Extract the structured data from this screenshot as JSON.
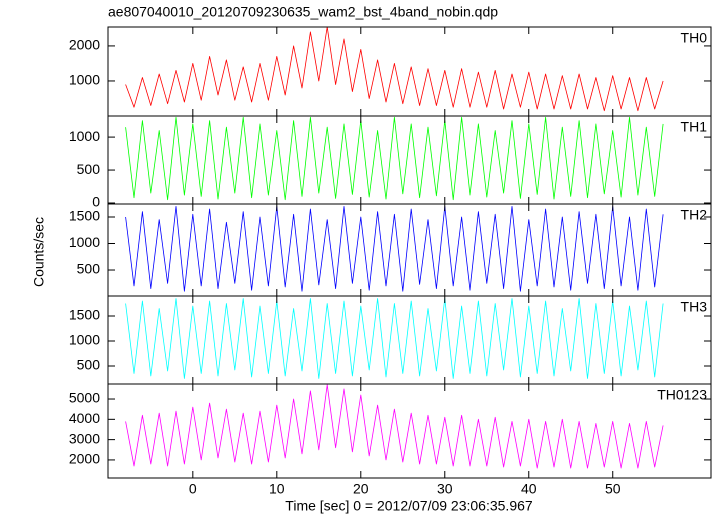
{
  "title": "ae807040010_20120709230635_wam2_bst_4band_nobin.qdp",
  "xlabel": "Time [sec] 0 = 2012/07/09 23:06:35.967",
  "ylabel": "Counts/sec",
  "chart_data": [
    {
      "type": "line",
      "label": "TH0",
      "color": "#ff0000",
      "x": [
        -8,
        -7,
        -6,
        -5,
        -4,
        -3,
        -2,
        -1,
        0,
        1,
        2,
        3,
        4,
        5,
        6,
        7,
        8,
        9,
        10,
        11,
        12,
        13,
        14,
        15,
        16,
        17,
        18,
        19,
        20,
        21,
        22,
        23,
        24,
        25,
        26,
        27,
        28,
        29,
        30,
        31,
        32,
        33,
        34,
        35,
        36,
        37,
        38,
        39,
        40,
        41,
        42,
        43,
        44,
        45,
        46,
        47,
        48,
        49,
        50,
        51,
        52,
        53,
        54,
        55,
        56
      ],
      "values": [
        900,
        250,
        1100,
        300,
        1200,
        350,
        1300,
        400,
        1500,
        450,
        1700,
        600,
        1600,
        450,
        1400,
        400,
        1500,
        450,
        1700,
        600,
        2000,
        800,
        2400,
        1000,
        2540,
        900,
        2200,
        700,
        1900,
        500,
        1600,
        400,
        1500,
        350,
        1400,
        300,
        1350,
        300,
        1300,
        250,
        1350,
        250,
        1250,
        250,
        1300,
        200,
        1200,
        250,
        1250,
        200,
        1200,
        200,
        1150,
        200,
        1200,
        200,
        1100,
        150,
        1150,
        200,
        1100,
        150,
        1100,
        200,
        1000
      ],
      "xlim": [
        -10.1,
        61.7
      ],
      "xticks": [
        0,
        10,
        20,
        30,
        40,
        50
      ],
      "ylim": [
        0,
        2540
      ],
      "yticks": [
        1000,
        2000
      ]
    },
    {
      "type": "line",
      "label": "TH1",
      "color": "#00ff00",
      "x": [
        -8,
        -7,
        -6,
        -5,
        -4,
        -3,
        -2,
        -1,
        0,
        1,
        2,
        3,
        4,
        5,
        6,
        7,
        8,
        9,
        10,
        11,
        12,
        13,
        14,
        15,
        16,
        17,
        18,
        19,
        20,
        21,
        22,
        23,
        24,
        25,
        26,
        27,
        28,
        29,
        30,
        31,
        32,
        33,
        34,
        35,
        36,
        37,
        38,
        39,
        40,
        41,
        42,
        43,
        44,
        45,
        46,
        47,
        48,
        49,
        50,
        51,
        52,
        53,
        54,
        55,
        56
      ],
      "values": [
        1150,
        80,
        1250,
        150,
        1100,
        50,
        1300,
        120,
        1200,
        100,
        1250,
        60,
        1150,
        150,
        1300,
        80,
        1200,
        120,
        1100,
        50,
        1250,
        100,
        1300,
        150,
        1150,
        70,
        1200,
        130,
        1250,
        90,
        1100,
        60,
        1300,
        140,
        1200,
        80,
        1150,
        110,
        1250,
        50,
        1300,
        120,
        1200,
        90,
        1100,
        150,
        1250,
        70,
        1200,
        130,
        1300,
        60,
        1150,
        100,
        1250,
        80,
        1200,
        140,
        1100,
        90,
        1300,
        120,
        1150,
        100,
        1200
      ],
      "xlim": [
        -10.1,
        61.7
      ],
      "xticks": [
        0,
        10,
        20,
        30,
        40,
        50
      ],
      "ylim": [
        -15,
        1320
      ],
      "yticks": [
        0,
        500,
        1000
      ]
    },
    {
      "type": "line",
      "label": "TH2",
      "color": "#0000ff",
      "x": [
        -8,
        -7,
        -6,
        -5,
        -4,
        -3,
        -2,
        -1,
        0,
        1,
        2,
        3,
        4,
        5,
        6,
        7,
        8,
        9,
        10,
        11,
        12,
        13,
        14,
        15,
        16,
        17,
        18,
        19,
        20,
        21,
        22,
        23,
        24,
        25,
        26,
        27,
        28,
        29,
        30,
        31,
        32,
        33,
        34,
        35,
        36,
        37,
        38,
        39,
        40,
        41,
        42,
        43,
        44,
        45,
        46,
        47,
        48,
        49,
        50,
        51,
        52,
        53,
        54,
        55,
        56
      ],
      "values": [
        1500,
        200,
        1600,
        150,
        1450,
        250,
        1700,
        100,
        1550,
        200,
        1650,
        150,
        1400,
        250,
        1600,
        120,
        1500,
        200,
        1700,
        180,
        1550,
        100,
        1650,
        220,
        1450,
        150,
        1700,
        250,
        1500,
        120,
        1600,
        200,
        1550,
        100,
        1650,
        230,
        1450,
        150,
        1700,
        200,
        1500,
        120,
        1600,
        250,
        1550,
        150,
        1700,
        100,
        1450,
        200,
        1650,
        180,
        1500,
        120,
        1600,
        250,
        1550,
        150,
        1700,
        200,
        1500,
        120,
        1650,
        180,
        1550
      ],
      "xlim": [
        -10.1,
        61.7
      ],
      "xticks": [
        0,
        10,
        20,
        30,
        40,
        50
      ],
      "ylim": [
        10,
        1745
      ],
      "yticks": [
        500,
        1000,
        1500
      ]
    },
    {
      "type": "line",
      "label": "TH3",
      "color": "#00ffff",
      "x": [
        -8,
        -7,
        -6,
        -5,
        -4,
        -3,
        -2,
        -1,
        0,
        1,
        2,
        3,
        4,
        5,
        6,
        7,
        8,
        9,
        10,
        11,
        12,
        13,
        14,
        15,
        16,
        17,
        18,
        19,
        20,
        21,
        22,
        23,
        24,
        25,
        26,
        27,
        28,
        29,
        30,
        31,
        32,
        33,
        34,
        35,
        36,
        37,
        38,
        39,
        40,
        41,
        42,
        43,
        44,
        45,
        46,
        47,
        48,
        49,
        50,
        51,
        52,
        53,
        54,
        55,
        56
      ],
      "values": [
        1750,
        350,
        1800,
        300,
        1650,
        400,
        1850,
        250,
        1700,
        350,
        1800,
        300,
        1750,
        420,
        1850,
        280,
        1700,
        350,
        1800,
        300,
        1650,
        400,
        1850,
        250,
        1750,
        350,
        1800,
        300,
        1700,
        420,
        1850,
        280,
        1750,
        350,
        1800,
        300,
        1650,
        400,
        1850,
        250,
        1700,
        350,
        1800,
        300,
        1750,
        420,
        1850,
        280,
        1700,
        350,
        1800,
        300,
        1650,
        400,
        1850,
        250,
        1750,
        350,
        1800,
        300,
        1700,
        420,
        1800,
        280,
        1750
      ],
      "xlim": [
        -10.1,
        61.7
      ],
      "xticks": [
        0,
        10,
        20,
        30,
        40,
        50
      ],
      "ylim": [
        140,
        1900
      ],
      "yticks": [
        500,
        1000,
        1500
      ]
    },
    {
      "type": "line",
      "label": "TH0123",
      "color": "#ff00ff",
      "x": [
        -8,
        -7,
        -6,
        -5,
        -4,
        -3,
        -2,
        -1,
        0,
        1,
        2,
        3,
        4,
        5,
        6,
        7,
        8,
        9,
        10,
        11,
        12,
        13,
        14,
        15,
        16,
        17,
        18,
        19,
        20,
        21,
        22,
        23,
        24,
        25,
        26,
        27,
        28,
        29,
        30,
        31,
        32,
        33,
        34,
        35,
        36,
        37,
        38,
        39,
        40,
        41,
        42,
        43,
        44,
        45,
        46,
        47,
        48,
        49,
        50,
        51,
        52,
        53,
        54,
        55,
        56
      ],
      "values": [
        3900,
        1700,
        4200,
        1800,
        4300,
        1700,
        4400,
        1800,
        4600,
        2000,
        4800,
        2100,
        4500,
        1900,
        4300,
        1800,
        4400,
        1900,
        4700,
        2100,
        5000,
        2300,
        5400,
        2500,
        5700,
        2600,
        5500,
        2400,
        5200,
        2200,
        4700,
        2000,
        4500,
        1900,
        4300,
        1800,
        4200,
        1800,
        4100,
        1700,
        4200,
        1700,
        4000,
        1700,
        4100,
        1650,
        3900,
        1700,
        4000,
        1600,
        3900,
        1650,
        4000,
        1600,
        3900,
        1600,
        3800,
        1650,
        3900,
        1600,
        3800,
        1600,
        3900,
        1650,
        3700
      ],
      "xlim": [
        -10.1,
        61.7
      ],
      "xticks": [
        0,
        10,
        20,
        30,
        40,
        50
      ],
      "ylim": [
        1110,
        5740
      ],
      "yticks": [
        2000,
        3000,
        4000,
        5000
      ]
    }
  ]
}
